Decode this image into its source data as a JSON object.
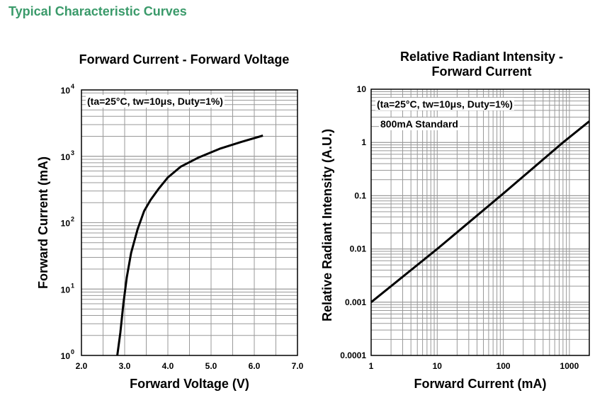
{
  "page": {
    "heading": "Typical Characteristic Curves"
  },
  "chart_data": [
    {
      "type": "line",
      "title": "Forward Current - Forward Voltage",
      "xlabel": "Forward Voltage (V)",
      "ylabel": "Forward Current (mA)",
      "annotation": "(ta=25°C, tw=10μs, Duty=1%)",
      "x_scale": "linear",
      "y_scale": "log",
      "xlim": [
        2.0,
        7.0
      ],
      "ylim": [
        1,
        10000
      ],
      "x_ticks": [
        "2.0",
        "3.0",
        "4.0",
        "5.0",
        "6.0",
        "7.0"
      ],
      "y_ticks": [
        {
          "base": "10",
          "exp": "0"
        },
        {
          "base": "10",
          "exp": "1"
        },
        {
          "base": "10",
          "exp": "2"
        },
        {
          "base": "10",
          "exp": "3"
        },
        {
          "base": "10",
          "exp": "4"
        }
      ],
      "grid": true,
      "color": "#000000",
      "x": [
        2.83,
        2.9,
        2.97,
        3.05,
        3.15,
        3.3,
        3.45,
        3.6,
        3.78,
        4.0,
        4.3,
        4.7,
        5.2,
        5.7,
        6.2
      ],
      "y": [
        1,
        2.2,
        6,
        15,
        35,
        80,
        150,
        220,
        320,
        480,
        700,
        950,
        1300,
        1650,
        2050
      ]
    },
    {
      "type": "line",
      "title": "Relative Radiant Intensity - Forward Current",
      "title_lines": [
        "Relative Radiant Intensity -",
        "Forward Current"
      ],
      "xlabel": "Forward Current (mA)",
      "ylabel": "Relative Radiant Intensity (A.U.)",
      "annotation": "(ta=25°C, tw=10μs, Duty=1%)",
      "annotation2": "800mA Standard",
      "x_scale": "log",
      "y_scale": "log",
      "xlim": [
        1,
        2000
      ],
      "ylim": [
        0.0001,
        10
      ],
      "x_ticks": [
        "1",
        "10",
        "100",
        "1000"
      ],
      "y_ticks": [
        "0.0001",
        "0.001",
        "0.01",
        "0.1",
        "1",
        "10"
      ],
      "grid": true,
      "color": "#000000",
      "x": [
        1,
        2,
        3,
        4,
        10,
        100,
        800,
        2000
      ],
      "y": [
        0.001,
        0.002,
        0.003,
        0.004,
        0.01,
        0.11,
        1,
        2.5
      ]
    }
  ]
}
